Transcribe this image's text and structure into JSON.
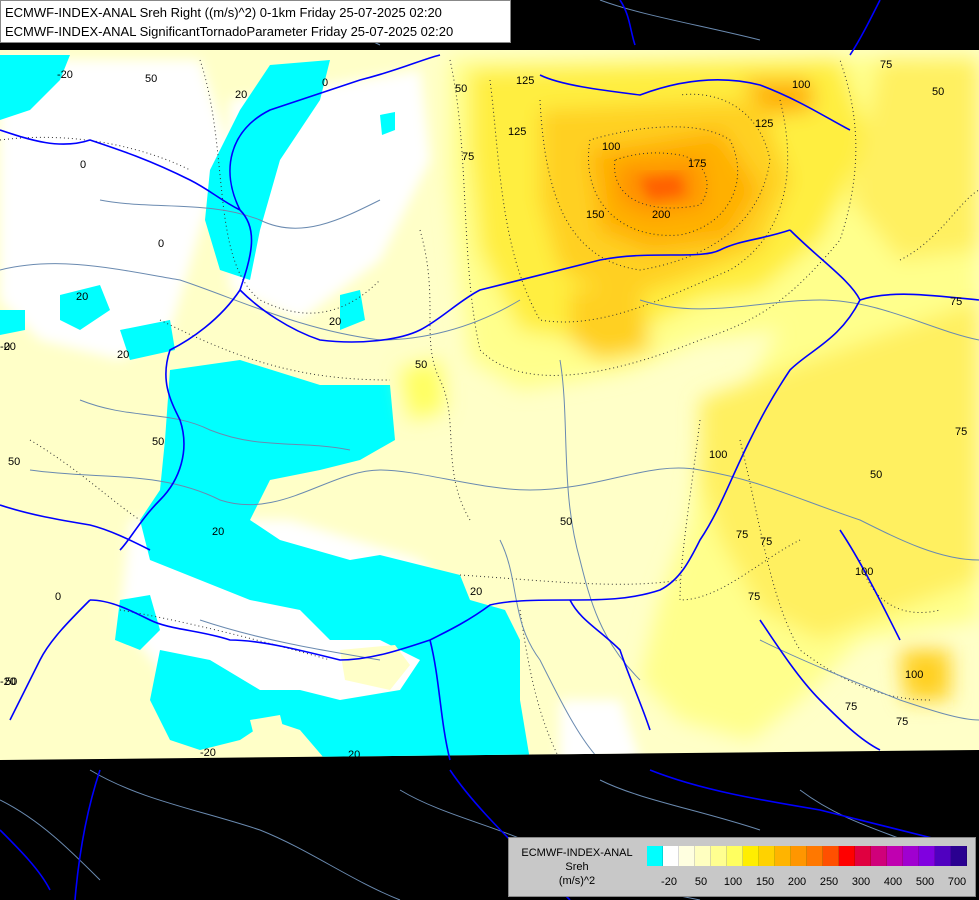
{
  "header": {
    "line1": "ECMWF-INDEX-ANAL Sreh Right ((m/s)^2) 0-1km Friday 25-07-2025 02:20",
    "line2": "ECMWF-INDEX-ANAL SignificantTornadoParameter Friday 25-07-2025 02:20"
  },
  "legend": {
    "title_line1": "ECMWF-INDEX-ANAL",
    "title_line2": "Sreh",
    "title_line3": "(m/s)^2",
    "colors": [
      "#00ffff",
      "#ffffff",
      "#ffffe0",
      "#ffffc0",
      "#ffff90",
      "#ffff60",
      "#ffee00",
      "#ffd200",
      "#ffb400",
      "#ff9600",
      "#ff7800",
      "#ff5000",
      "#ff0000",
      "#e00040",
      "#d0007a",
      "#c000b0",
      "#a000d0",
      "#8000e0",
      "#5000c0",
      "#2a0090"
    ],
    "ticks": [
      "-20",
      "50",
      "100",
      "150",
      "200",
      "250",
      "300",
      "400",
      "500",
      "700"
    ]
  },
  "map": {
    "ocean_color": "#000000",
    "border_color": "#0000ff",
    "river_color": "#6a8ab0",
    "contour_labels": [
      "-20",
      "50",
      "0",
      "20",
      "0",
      "50",
      "75",
      "125",
      "100",
      "75",
      "50",
      "125",
      "100",
      "125",
      "175",
      "150",
      "200",
      "75",
      "0",
      "20",
      "-20",
      "0",
      "20",
      "20",
      "50",
      "20",
      "50",
      "50",
      "75",
      "100",
      "75",
      "50",
      "75",
      "100",
      "20",
      "-20",
      "0",
      "50",
      "-20",
      "20",
      "75",
      "75",
      "100",
      "75",
      "50"
    ]
  }
}
